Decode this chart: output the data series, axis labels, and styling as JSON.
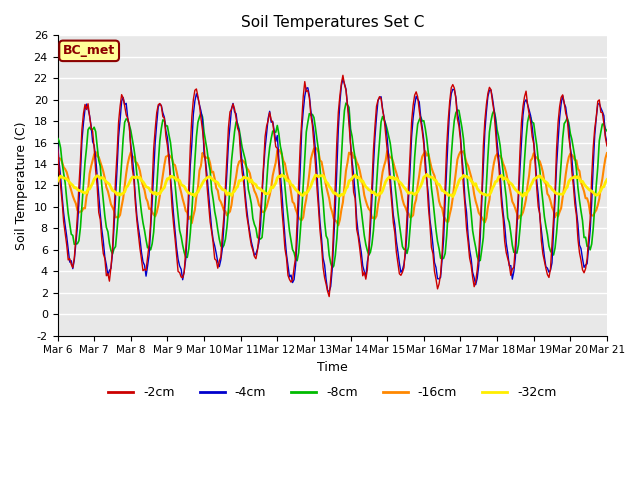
{
  "title": "Soil Temperatures Set C",
  "xlabel": "Time",
  "ylabel": "Soil Temperature (C)",
  "ylim": [
    -2,
    26
  ],
  "xlim": [
    0,
    360
  ],
  "plot_bg": "#e8e8e8",
  "grid_color": "white",
  "legend_label": "BC_met",
  "legend_fg": "#8b0000",
  "legend_bg": "#ffff99",
  "colors": {
    "-2cm": "#cc0000",
    "-4cm": "#0000cc",
    "-8cm": "#00bb00",
    "-16cm": "#ff8800",
    "-32cm": "#ffee00"
  },
  "line_widths": {
    "-2cm": 1.0,
    "-4cm": 1.0,
    "-8cm": 1.2,
    "-16cm": 1.5,
    "-32cm": 2.0
  },
  "tick_labels": [
    "Mar 6",
    "Mar 7",
    "Mar 8",
    "Mar 9",
    "Mar 10",
    "Mar 11",
    "Mar 12",
    "Mar 13",
    "Mar 14",
    "Mar 15",
    "Mar 16",
    "Mar 17",
    "Mar 18",
    "Mar 19",
    "Mar 20",
    "Mar 21"
  ],
  "tick_positions": [
    0,
    24,
    48,
    72,
    96,
    120,
    144,
    168,
    192,
    216,
    240,
    264,
    288,
    312,
    336,
    360
  ],
  "yticks": [
    -2,
    0,
    2,
    4,
    6,
    8,
    10,
    12,
    14,
    16,
    18,
    20,
    22,
    24,
    26
  ]
}
